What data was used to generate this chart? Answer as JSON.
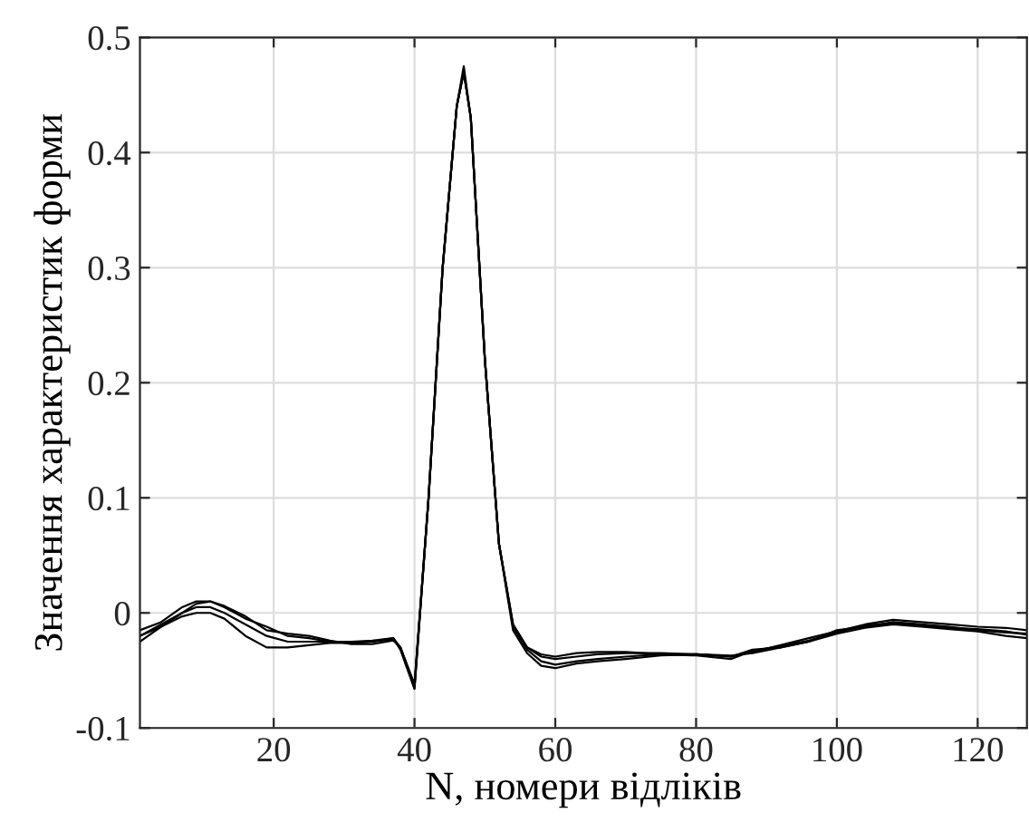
{
  "chart_data": {
    "type": "line",
    "xlabel": "N, номери відліків",
    "ylabel": "Значення характеристик форми",
    "x": [
      1,
      4,
      7,
      9,
      11,
      13,
      16,
      19,
      22,
      25,
      28,
      31,
      34,
      37,
      38,
      40,
      42,
      44,
      46,
      47,
      48,
      50,
      52,
      54,
      56,
      58,
      60,
      63,
      66,
      70,
      75,
      80,
      85,
      88,
      92,
      96,
      100,
      104,
      108,
      112,
      116,
      120,
      124,
      127
    ],
    "series": [
      {
        "color": "#000000",
        "values": [
          -0.02,
          -0.01,
          0.0,
          0.005,
          0.005,
          0.0,
          -0.01,
          -0.02,
          -0.025,
          -0.025,
          -0.025,
          -0.025,
          -0.024,
          -0.022,
          -0.03,
          -0.065,
          0.1,
          0.3,
          0.44,
          0.475,
          0.43,
          0.22,
          0.06,
          -0.01,
          -0.03,
          -0.038,
          -0.04,
          -0.038,
          -0.036,
          -0.035,
          -0.035,
          -0.036,
          -0.038,
          -0.032,
          -0.03,
          -0.025,
          -0.015,
          -0.012,
          -0.008,
          -0.01,
          -0.012,
          -0.015,
          -0.017,
          -0.018
        ]
      },
      {
        "color": "#000000",
        "values": [
          -0.015,
          -0.008,
          0.005,
          0.01,
          0.01,
          0.005,
          -0.005,
          -0.012,
          -0.02,
          -0.022,
          -0.025,
          -0.026,
          -0.025,
          -0.023,
          -0.03,
          -0.062,
          0.1,
          0.3,
          0.44,
          0.47,
          0.43,
          0.22,
          0.06,
          -0.012,
          -0.032,
          -0.042,
          -0.045,
          -0.042,
          -0.04,
          -0.038,
          -0.036,
          -0.036,
          -0.038,
          -0.034,
          -0.028,
          -0.022,
          -0.016,
          -0.01,
          -0.006,
          -0.008,
          -0.01,
          -0.012,
          -0.013,
          -0.015
        ]
      },
      {
        "color": "#000000",
        "values": [
          -0.02,
          -0.012,
          -0.003,
          0.0,
          0.0,
          -0.005,
          -0.02,
          -0.03,
          -0.03,
          -0.028,
          -0.026,
          -0.026,
          -0.025,
          -0.022,
          -0.032,
          -0.066,
          0.1,
          0.3,
          0.44,
          0.47,
          0.43,
          0.22,
          0.06,
          -0.015,
          -0.035,
          -0.046,
          -0.048,
          -0.044,
          -0.042,
          -0.04,
          -0.037,
          -0.036,
          -0.037,
          -0.035,
          -0.03,
          -0.025,
          -0.018,
          -0.013,
          -0.01,
          -0.012,
          -0.014,
          -0.016,
          -0.02,
          -0.022
        ]
      },
      {
        "color": "#000000",
        "values": [
          -0.025,
          -0.012,
          0.0,
          0.008,
          0.01,
          0.006,
          -0.003,
          -0.015,
          -0.018,
          -0.02,
          -0.024,
          -0.027,
          -0.027,
          -0.024,
          -0.03,
          -0.063,
          0.1,
          0.3,
          0.44,
          0.47,
          0.43,
          0.22,
          0.06,
          -0.01,
          -0.03,
          -0.036,
          -0.038,
          -0.035,
          -0.034,
          -0.034,
          -0.036,
          -0.037,
          -0.04,
          -0.033,
          -0.029,
          -0.024,
          -0.017,
          -0.011,
          -0.009,
          -0.011,
          -0.013,
          -0.014,
          -0.016,
          -0.019
        ]
      }
    ],
    "xlim": [
      1,
      127
    ],
    "ylim": [
      -0.1,
      0.5
    ],
    "xticks": [
      20,
      40,
      60,
      80,
      100,
      120
    ],
    "yticks": [
      -0.1,
      0,
      0.1,
      0.2,
      0.3,
      0.4,
      0.5
    ],
    "grid": true,
    "legend": false,
    "marker": "none",
    "line_style": "solid"
  }
}
